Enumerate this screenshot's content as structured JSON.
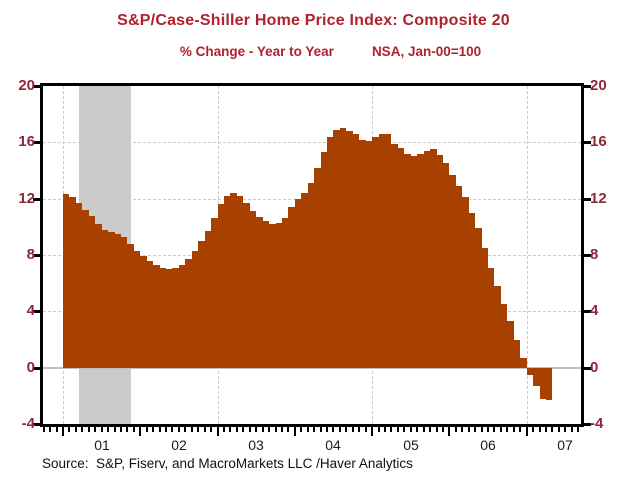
{
  "header": {
    "title": "S&P/Case-Shiller Home Price Index: Composite 20",
    "subtitle_left": "% Change - Year to Year",
    "subtitle_right": "NSA, Jan-00=100"
  },
  "footer": {
    "source": "Source:  S&P, Fiserv, and MacroMarkets LLC /Haver Analytics"
  },
  "colors": {
    "bar": "#A84000",
    "title_text": "#B0222A",
    "axis_label_text": "#90253A",
    "recession_band": "#CBCBCB",
    "gridline": "#CCCCCC",
    "zero_line": "#C0C0C0",
    "axis": "#000000"
  },
  "chart_data": {
    "type": "bar",
    "title": "S&P/Case-Shiller Home Price Index: Composite 20",
    "xlabel": "",
    "ylabel": "% Change - Year to Year",
    "units_note": "NSA, Jan-00=100",
    "frequency": "monthly",
    "start_month": "2001-01",
    "end_month": "2007-04",
    "series": {
      "2001": [
        12.3,
        12.1,
        11.7,
        11.2,
        10.8,
        10.2,
        9.8,
        9.6,
        9.5,
        9.3,
        8.8,
        8.3
      ],
      "2002": [
        7.9,
        7.6,
        7.3,
        7.1,
        7.0,
        7.1,
        7.3,
        7.7,
        8.3,
        9.0,
        9.7,
        10.6
      ],
      "2003": [
        11.6,
        12.2,
        12.4,
        12.2,
        11.7,
        11.1,
        10.7,
        10.4,
        10.2,
        10.3,
        10.6,
        11.4
      ],
      "2004": [
        12.0,
        12.4,
        13.1,
        14.2,
        15.3,
        16.4,
        16.9,
        17.0,
        16.8,
        16.6,
        16.2,
        16.1
      ],
      "2005": [
        16.4,
        16.6,
        16.6,
        15.9,
        15.6,
        15.2,
        15.0,
        15.2,
        15.4,
        15.5,
        15.1,
        14.5
      ],
      "2006": [
        13.7,
        12.9,
        12.1,
        11.0,
        9.9,
        8.5,
        7.1,
        5.8,
        4.5,
        3.3,
        2.0,
        0.7
      ],
      "2007": [
        -0.5,
        -1.3,
        -2.2,
        -2.3
      ]
    },
    "ylim": [
      -4,
      20
    ],
    "y_ticks": [
      20,
      16,
      12,
      8,
      4,
      0,
      -4
    ],
    "y_axis_sides": [
      "left",
      "right"
    ],
    "x_tick_labels": [
      "01",
      "02",
      "03",
      "04",
      "05",
      "06",
      "07"
    ],
    "xlim_months": [
      "2000-10",
      "2007-10"
    ],
    "grid": {
      "h_dashed_at": [
        16,
        12,
        8,
        4
      ],
      "v_dashed_at_january_of": [
        2001,
        2003,
        2005,
        2007
      ],
      "zero_line": true
    },
    "recession_band": {
      "start": "2001-03",
      "end": "2001-11"
    }
  }
}
